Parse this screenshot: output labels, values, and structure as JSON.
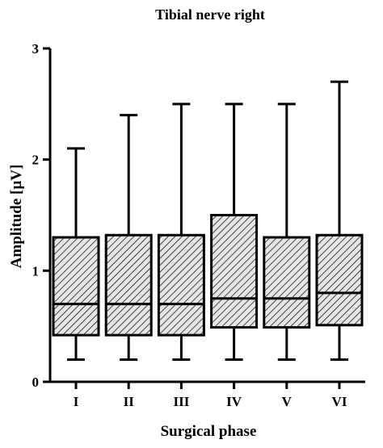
{
  "chart_data": {
    "type": "box",
    "title": "Tibial nerve right",
    "xlabel": "Surgical phase",
    "ylabel": "Amplitude [µV]",
    "ylim": [
      0,
      3
    ],
    "yticks": [
      0,
      1,
      2,
      3
    ],
    "grid": false,
    "categories": [
      "I",
      "II",
      "III",
      "IV",
      "V",
      "VI"
    ],
    "boxes": [
      {
        "category": "I",
        "min": 0.2,
        "q1": 0.42,
        "median": 0.7,
        "q3": 1.3,
        "max": 2.1
      },
      {
        "category": "II",
        "min": 0.2,
        "q1": 0.42,
        "median": 0.7,
        "q3": 1.32,
        "max": 2.4
      },
      {
        "category": "III",
        "min": 0.2,
        "q1": 0.42,
        "median": 0.7,
        "q3": 1.32,
        "max": 2.5
      },
      {
        "category": "IV",
        "min": 0.2,
        "q1": 0.49,
        "median": 0.75,
        "q3": 1.5,
        "max": 2.5
      },
      {
        "category": "V",
        "min": 0.2,
        "q1": 0.49,
        "median": 0.75,
        "q3": 1.3,
        "max": 2.5
      },
      {
        "category": "VI",
        "min": 0.2,
        "q1": 0.51,
        "median": 0.8,
        "q3": 1.32,
        "max": 2.7
      }
    ],
    "box_fill": "diagonal-hatch",
    "colors": {
      "stroke": "#000000",
      "hatch": "#000000",
      "background": "#ffffff"
    }
  }
}
